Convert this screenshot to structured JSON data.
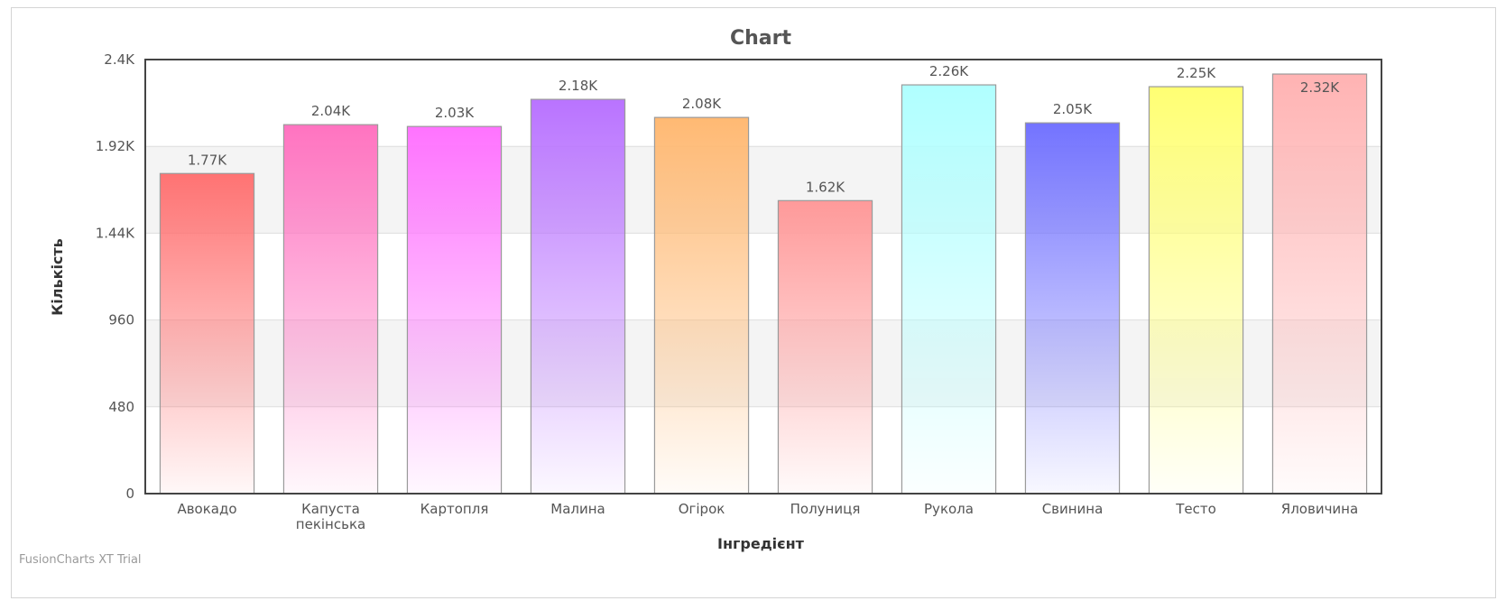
{
  "chart_data": {
    "type": "bar",
    "title": "Chart",
    "xlabel": "Інгредієнт",
    "ylabel": "Кількість",
    "ylim": [
      0,
      2400
    ],
    "yticks": [
      "0",
      "480",
      "960",
      "1.44K",
      "1.92K",
      "2.4K"
    ],
    "categories": [
      "Авокадо",
      "Капуста пекінська",
      "Картопля",
      "Малина",
      "Огірок",
      "Полуниця",
      "Рукола",
      "Свинина",
      "Тесто",
      "Яловичина"
    ],
    "values": [
      1770,
      2040,
      2030,
      2180,
      2080,
      1620,
      2260,
      2050,
      2250,
      2320
    ],
    "value_labels": [
      "1.77K",
      "2.04K",
      "2.03K",
      "2.18K",
      "2.08K",
      "1.62K",
      "2.26K",
      "2.05K",
      "2.25K",
      "2.32K"
    ],
    "colors": [
      "#ff7373",
      "#ff73c0",
      "#ff73ff",
      "#b973ff",
      "#ffb973",
      "#ff9a9a",
      "#b0ffff",
      "#7373ff",
      "#ffff73",
      "#ffb3b3"
    ],
    "grid": true,
    "legend": "none"
  },
  "watermark": "FusionCharts XT Trial"
}
